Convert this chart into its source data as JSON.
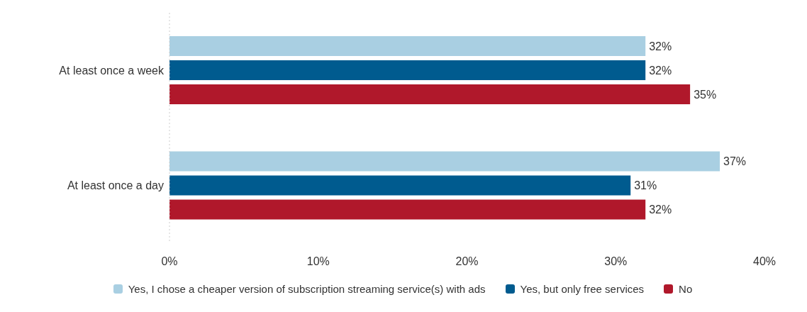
{
  "chart_data": {
    "type": "bar",
    "orientation": "horizontal",
    "categories": [
      "At least once a week",
      "At least once a day"
    ],
    "series": [
      {
        "name": "Yes, I chose a cheaper version of subscription streaming service(s) with ads",
        "color": "#a9cfe2",
        "values": [
          32,
          37
        ],
        "value_labels": [
          "32%",
          "37%"
        ]
      },
      {
        "name": "Yes, but only free services",
        "color": "#005b8f",
        "values": [
          32,
          31
        ],
        "value_labels": [
          "32%",
          "31%"
        ]
      },
      {
        "name": "No",
        "color": "#b0182b",
        "values": [
          35,
          32
        ],
        "value_labels": [
          "35%",
          "32%"
        ]
      }
    ],
    "xlim": [
      0,
      40
    ],
    "xticks": [
      {
        "value": 0,
        "label": "0%"
      },
      {
        "value": 10,
        "label": "10%"
      },
      {
        "value": 20,
        "label": "20%"
      },
      {
        "value": 30,
        "label": "30%"
      },
      {
        "value": 40,
        "label": "40%"
      }
    ],
    "grid": false,
    "legend": "bottom"
  }
}
